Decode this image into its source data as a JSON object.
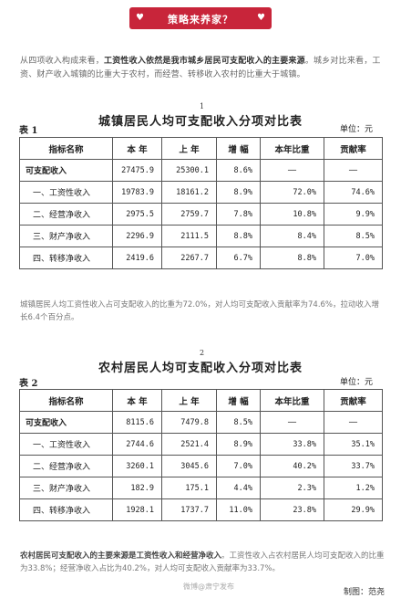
{
  "banner": {
    "title": "策略来养家？"
  },
  "intro": {
    "part1": "从四项收入构成来看，",
    "bold": "工资性收入依然是我市城乡居民可支配收入的主要来源",
    "part2": "。城乡对比来看，工资、财产收入城镇的比重大于农村，而经营、转移收入农村的比重大于城镇。"
  },
  "table1": {
    "number": "1",
    "title": "城镇居民人均可支配收入分项对比表",
    "label": "表 1",
    "unit": "单位：元",
    "headers": [
      "指标名称",
      "本 年",
      "上 年",
      "增 幅",
      "本年比重",
      "贡献率"
    ],
    "rows": [
      {
        "name": "可支配收入",
        "cur": "27475.9",
        "prev": "25300.1",
        "growth": "8.6%",
        "share": "—",
        "contrib": "—"
      },
      {
        "name": "一、工资性收入",
        "cur": "19783.9",
        "prev": "18161.2",
        "growth": "8.9%",
        "share": "72.0%",
        "contrib": "74.6%"
      },
      {
        "name": "二、经营净收入",
        "cur": "2975.5",
        "prev": "2759.7",
        "growth": "7.8%",
        "share": "10.8%",
        "contrib": "9.9%"
      },
      {
        "name": "三、财产净收入",
        "cur": "2296.9",
        "prev": "2111.5",
        "growth": "8.8%",
        "share": "8.4%",
        "contrib": "8.5%"
      },
      {
        "name": "四、转移净收入",
        "cur": "2419.6",
        "prev": "2267.7",
        "growth": "6.7%",
        "share": "8.8%",
        "contrib": "7.0%"
      }
    ]
  },
  "note1": "城镇居民人均工资性收入占可支配收入的比重为72.0%，对人均可支配收入贡献率为74.6%，拉动收入增长6.4个百分点。",
  "table2": {
    "number": "2",
    "title": "农村居民人均可支配收入分项对比表",
    "label": "表 2",
    "unit": "单位：元",
    "headers": [
      "指标名称",
      "本 年",
      "上 年",
      "增 幅",
      "本年比重",
      "贡献率"
    ],
    "rows": [
      {
        "name": "可支配收入",
        "cur": "8115.6",
        "prev": "7479.8",
        "growth": "8.5%",
        "share": "—",
        "contrib": "—"
      },
      {
        "name": "一、工资性收入",
        "cur": "2744.6",
        "prev": "2521.4",
        "growth": "8.9%",
        "share": "33.8%",
        "contrib": "35.1%"
      },
      {
        "name": "二、经营净收入",
        "cur": "3260.1",
        "prev": "3045.6",
        "growth": "7.0%",
        "share": "40.2%",
        "contrib": "33.7%"
      },
      {
        "name": "三、财产净收入",
        "cur": "182.9",
        "prev": "175.1",
        "growth": "4.4%",
        "share": "2.3%",
        "contrib": "1.2%"
      },
      {
        "name": "四、转移净收入",
        "cur": "1928.1",
        "prev": "1737.7",
        "growth": "11.0%",
        "share": "23.8%",
        "contrib": "29.9%"
      }
    ]
  },
  "note2": {
    "bold": "农村居民可支配收入的主要来源是工资性收入和经营净收入",
    "rest": "。工资性收入占农村居民人均可支配收入的比重为33.8%；经营净收入占比为40.2%，对人均可支配收入贡献率为33.7%。"
  },
  "footer": {
    "weibo": "微博@肃宁发布",
    "credit": "制图：范尧"
  },
  "colors": {
    "banner": "#c8253a"
  }
}
